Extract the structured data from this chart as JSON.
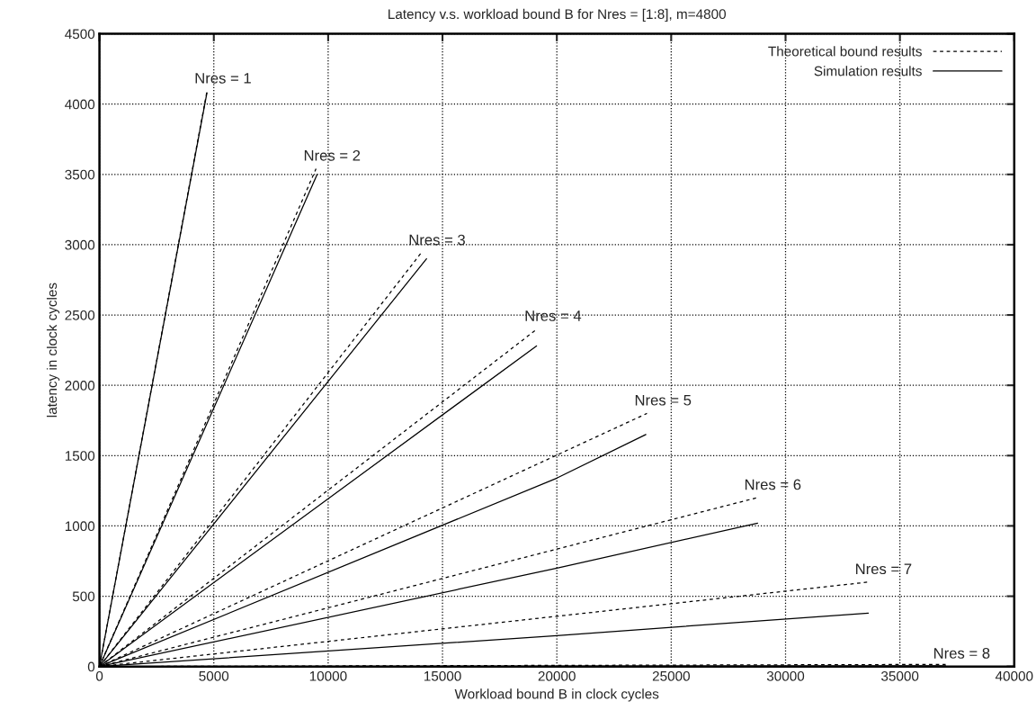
{
  "chart_data": {
    "type": "line",
    "title": "Latency v.s. workload bound B for Nres = [1:8], m=4800",
    "xlabel": "Workload bound B in clock cycles",
    "ylabel": "latency in clock cycles",
    "xlim": [
      0,
      40000
    ],
    "ylim": [
      0,
      4500
    ],
    "xticks": [
      0,
      5000,
      10000,
      15000,
      20000,
      25000,
      30000,
      35000,
      40000
    ],
    "yticks": [
      0,
      500,
      1000,
      1500,
      2000,
      2500,
      3000,
      3500,
      4000,
      4500
    ],
    "grid": true,
    "legend": "top right",
    "series": [
      {
        "name": "Theoretical bound results",
        "color": "#000000",
        "line_style": "dashed",
        "x": [
          0,
          4700
        ],
        "values": [
          0,
          4090
        ]
      },
      {
        "name": "Simulation results",
        "color": "#000000",
        "line_style": "solid",
        "x": [
          0,
          4700
        ],
        "values": [
          0,
          4080
        ]
      },
      {
        "color": "#000000",
        "line_style": "dashed",
        "x": [
          0,
          9470
        ],
        "values": [
          0,
          3540
        ]
      },
      {
        "color": "#000000",
        "line_style": "solid",
        "x": [
          0,
          9520
        ],
        "values": [
          0,
          3500
        ]
      },
      {
        "color": "#000000",
        "line_style": "dashed",
        "x": [
          0,
          14060
        ],
        "values": [
          0,
          2940
        ]
      },
      {
        "color": "#000000",
        "line_style": "solid",
        "x": [
          0,
          14300
        ],
        "values": [
          0,
          2900
        ]
      },
      {
        "color": "#000000",
        "line_style": "dashed",
        "x": [
          0,
          19130
        ],
        "values": [
          0,
          2400
        ]
      },
      {
        "color": "#000000",
        "line_style": "solid",
        "x": [
          0,
          19110
        ],
        "values": [
          0,
          2280
        ]
      },
      {
        "color": "#000000",
        "line_style": "dashed",
        "x": [
          0,
          23940
        ],
        "values": [
          0,
          1800
        ]
      },
      {
        "color": "#000000",
        "line_style": "solid",
        "x": [
          0,
          20000,
          23890
        ],
        "values": [
          0,
          1340,
          1650
        ]
      },
      {
        "color": "#000000",
        "line_style": "dashed",
        "x": [
          0,
          28740
        ],
        "values": [
          0,
          1200
        ]
      },
      {
        "color": "#000000",
        "line_style": "solid",
        "x": [
          0,
          20000,
          28780
        ],
        "values": [
          0,
          700,
          1020
        ]
      },
      {
        "color": "#000000",
        "line_style": "dashed",
        "x": [
          0,
          33580
        ],
        "values": [
          0,
          600
        ]
      },
      {
        "color": "#000000",
        "line_style": "solid",
        "x": [
          0,
          20000,
          33620
        ],
        "values": [
          0,
          220,
          380
        ]
      },
      {
        "color": "#000000",
        "line_style": "dashed",
        "x": [
          0,
          37000
        ],
        "values": [
          0,
          15
        ]
      },
      {
        "color": "#000000",
        "line_style": "solid",
        "x": [
          0,
          37000
        ],
        "values": [
          0,
          5
        ]
      }
    ],
    "annotations": [
      {
        "text": "Nres = 1",
        "x": 4700,
        "y": 4090
      },
      {
        "text": "Nres = 2",
        "x": 9470,
        "y": 3540
      },
      {
        "text": "Nres = 3",
        "x": 14060,
        "y": 2940
      },
      {
        "text": "Nres = 4",
        "x": 19130,
        "y": 2400
      },
      {
        "text": "Nres = 5",
        "x": 23940,
        "y": 1800
      },
      {
        "text": "Nres = 6",
        "x": 28740,
        "y": 1200
      },
      {
        "text": "Nres = 7",
        "x": 33580,
        "y": 600
      },
      {
        "text": "Nres = 8",
        "x": 37000,
        "y": 0
      }
    ]
  }
}
